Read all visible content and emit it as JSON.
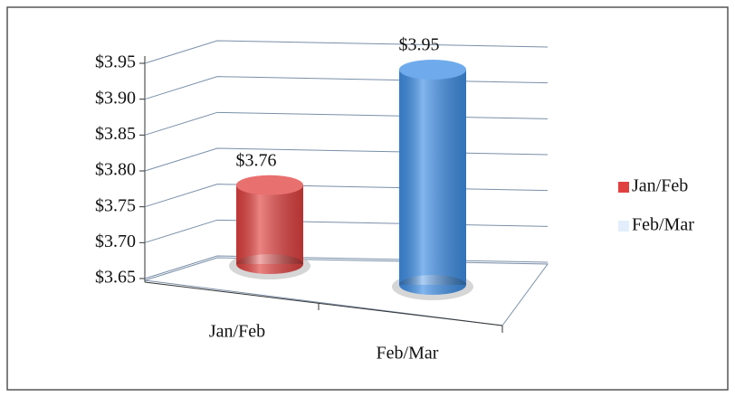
{
  "chart_data": {
    "type": "bar3d",
    "categories": [
      "Jan/Feb",
      "Feb/Mar"
    ],
    "series": [
      {
        "name": "Jan/Feb",
        "color": "#e0413f",
        "values": [
          3.76,
          null
        ],
        "value_labels": [
          "$3.76",
          null
        ]
      },
      {
        "name": "Feb/Mar",
        "color": "#3f8fe6",
        "values": [
          null,
          3.95
        ],
        "value_labels": [
          null,
          "$3.95"
        ]
      }
    ],
    "ylim": [
      3.65,
      3.95
    ],
    "yticks": [
      {
        "value": 3.65,
        "label": "$3.65"
      },
      {
        "value": 3.7,
        "label": "$3.70"
      },
      {
        "value": 3.75,
        "label": "$3.75"
      },
      {
        "value": 3.8,
        "label": "$3.80"
      },
      {
        "value": 3.85,
        "label": "$3.85"
      },
      {
        "value": 3.9,
        "label": "$3.90"
      },
      {
        "value": 3.95,
        "label": "$3.95"
      }
    ],
    "grid": true,
    "legend": "right"
  }
}
